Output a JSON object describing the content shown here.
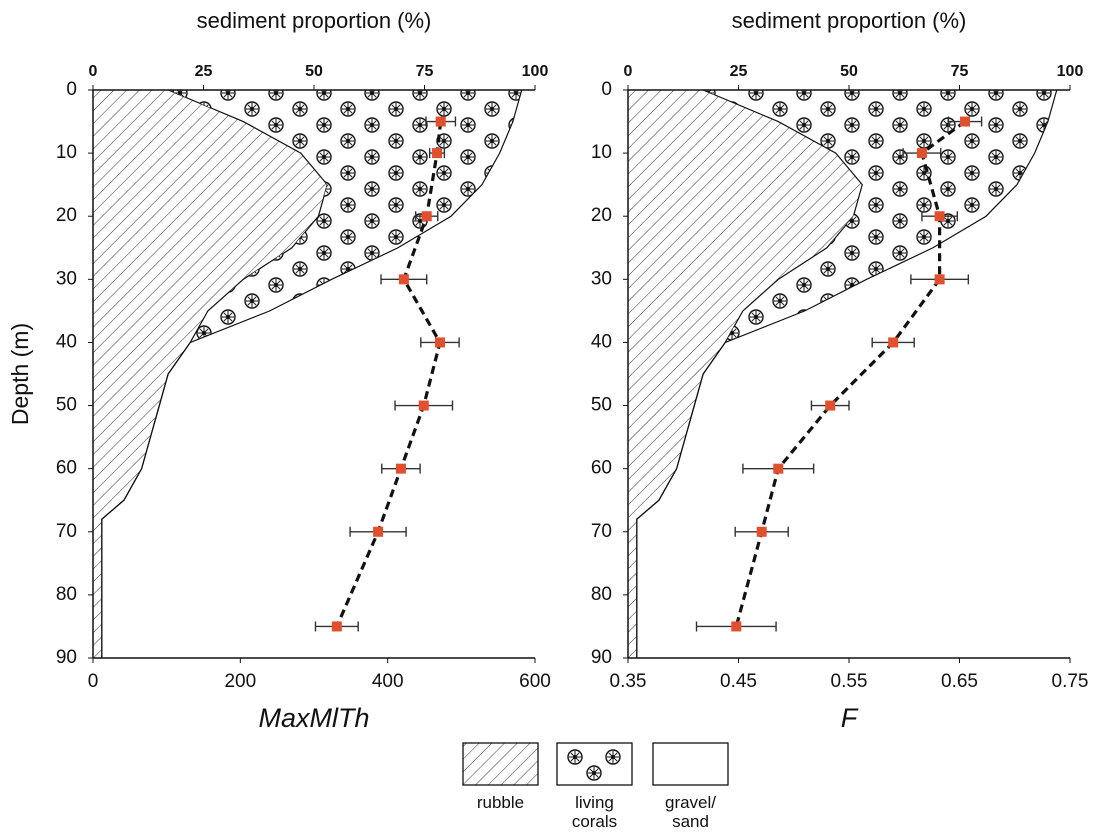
{
  "chart_data": [
    {
      "type": "line",
      "title": "sediment proportion (%)",
      "xlabel": "MaxMlTh",
      "ylabel": "Depth (m)",
      "xlim": [
        0,
        600
      ],
      "xticks": [
        0,
        200,
        400,
        600
      ],
      "ylim": [
        0,
        90
      ],
      "y_inverted": true,
      "yticks": [
        0,
        10,
        20,
        30,
        40,
        50,
        60,
        70,
        80,
        90
      ],
      "x2lim": [
        0,
        100
      ],
      "x2ticks": [
        0,
        25,
        50,
        75,
        100
      ],
      "series": [
        {
          "color": "#e0502e",
          "depth": [
            5,
            10,
            20,
            30,
            40,
            50,
            60,
            70,
            85
          ],
          "values": [
            472,
            467,
            453,
            422,
            471,
            449,
            418,
            387,
            331
          ],
          "errors": [
            20,
            10,
            15,
            31,
            26,
            39,
            26,
            38,
            29
          ]
        }
      ],
      "sediment": {
        "depth": [
          0,
          5,
          10,
          15,
          20,
          25,
          30,
          35,
          40,
          45,
          50,
          55,
          60,
          65,
          68,
          70,
          90
        ],
        "series": [
          {
            "pattern": "hatch",
            "values": [
              17,
              34,
              47,
              53,
              51,
              45,
              34,
              26,
              22,
              17,
              15,
              13,
              11,
              7,
              2,
              2,
              2
            ]
          },
          {
            "pattern": "dots",
            "values": [
              80,
              61,
              45,
              35,
              30,
              24,
              20,
              14,
              0,
              0,
              0,
              0,
              0,
              0,
              0,
              0,
              0
            ]
          }
        ]
      }
    },
    {
      "type": "line",
      "title": "sediment proportion (%)",
      "xlabel": "F",
      "xlim": [
        0.35,
        0.75
      ],
      "xticks": [
        0.35,
        0.45,
        0.55,
        0.65,
        0.75
      ],
      "ylim": [
        0,
        90
      ],
      "y_inverted": true,
      "yticks": [
        0,
        10,
        20,
        30,
        40,
        50,
        60,
        70,
        80,
        90
      ],
      "x2lim": [
        0,
        100
      ],
      "x2ticks": [
        0,
        25,
        50,
        75,
        100
      ],
      "series": [
        {
          "color": "#e0502e",
          "depth": [
            5,
            10,
            20,
            30,
            40,
            50,
            60,
            70,
            85
          ],
          "values": [
            0.655,
            0.616,
            0.632,
            0.632,
            0.59,
            0.533,
            0.486,
            0.471,
            0.448
          ],
          "errors": [
            0.015,
            0.017,
            0.016,
            0.026,
            0.019,
            0.017,
            0.032,
            0.024,
            0.036
          ]
        }
      ],
      "sediment": {
        "depth": [
          0,
          5,
          10,
          15,
          20,
          25,
          30,
          35,
          40,
          45,
          50,
          55,
          60,
          65,
          68,
          70,
          90
        ],
        "series": [
          {
            "pattern": "hatch",
            "values": [
              17,
              34,
              47,
              53,
              51,
              45,
              34,
              26,
              22,
              17,
              15,
              13,
              11,
              7,
              2,
              2,
              2
            ]
          },
          {
            "pattern": "dots",
            "values": [
              80,
              61,
              45,
              35,
              30,
              24,
              20,
              14,
              0,
              0,
              0,
              0,
              0,
              0,
              0,
              0,
              0
            ]
          }
        ]
      }
    }
  ],
  "legend": [
    "rubble",
    "living corals",
    "gravel/ sand"
  ]
}
